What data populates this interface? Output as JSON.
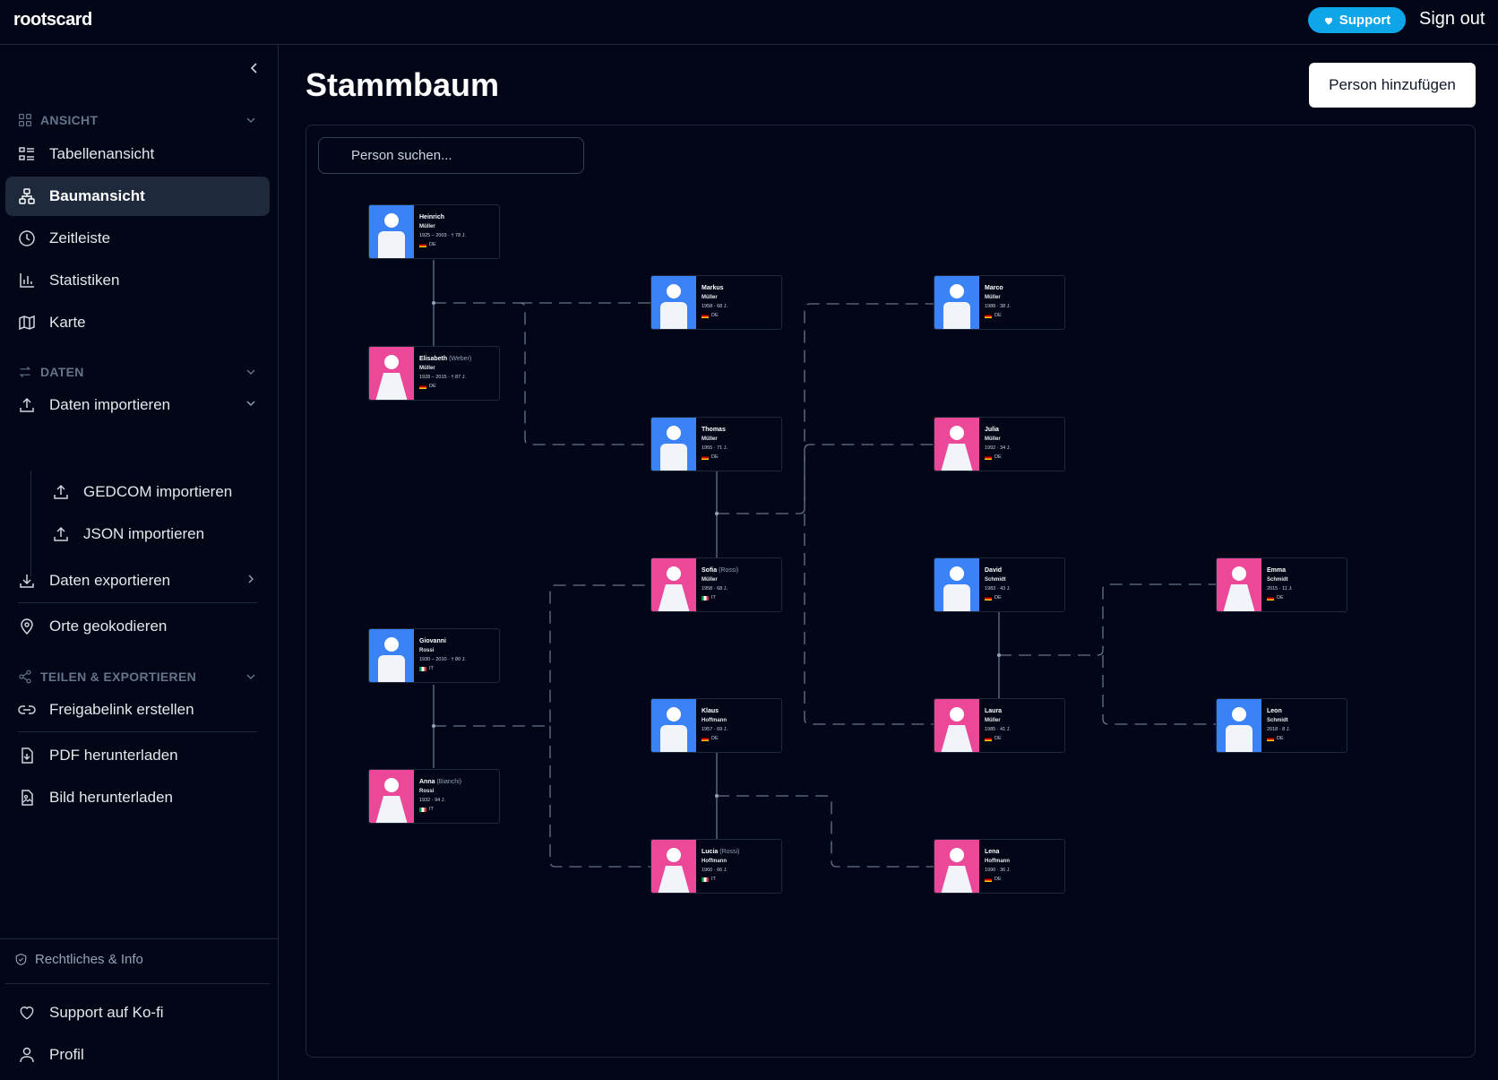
{
  "app": {
    "logo": "rootscard",
    "support_label": "Support",
    "signout_label": "Sign out"
  },
  "sidebar": {
    "sections": [
      {
        "label": "ANSICHT",
        "icon": "grid-icon"
      },
      {
        "label": "DATEN",
        "icon": "arrows-swap-icon"
      },
      {
        "label": "TEILEN & EXPORTIEREN",
        "icon": "share-icon"
      }
    ],
    "items": [
      {
        "label": "Tabellenansicht",
        "icon": "table-list-icon"
      },
      {
        "label": "Baumansicht",
        "icon": "tree-icon",
        "active": true
      },
      {
        "label": "Zeitleiste",
        "icon": "clock-icon"
      },
      {
        "label": "Statistiken",
        "icon": "bar-chart-icon"
      },
      {
        "label": "Karte",
        "icon": "map-icon"
      },
      {
        "label": "Daten importieren",
        "icon": "upload-icon"
      },
      {
        "label": "GEDCOM importieren",
        "icon": "upload-icon"
      },
      {
        "label": "JSON importieren",
        "icon": "upload-icon"
      },
      {
        "label": "Daten exportieren",
        "icon": "download-icon"
      },
      {
        "label": "Orte geokodieren",
        "icon": "map-pin-icon"
      },
      {
        "label": "Freigabelink erstellen",
        "icon": "link-icon"
      },
      {
        "label": "PDF herunterladen",
        "icon": "file-download-icon"
      },
      {
        "label": "Bild herunterladen",
        "icon": "image-file-icon"
      }
    ],
    "legal": "Rechtliches & Info",
    "footer": [
      {
        "label": "Support auf Ko-fi",
        "icon": "heart-icon"
      },
      {
        "label": "Profil",
        "icon": "user-icon"
      }
    ]
  },
  "main": {
    "title": "Stammbaum",
    "add_person_label": "Person hinzufügen",
    "search_placeholder": "Person suchen..."
  },
  "people": [
    {
      "first": "Heinrich",
      "birth": "",
      "last": "Müller",
      "years": "1925 – 2003 · † 78 J.",
      "country": "DE",
      "sex": "m"
    },
    {
      "first": "Elisabeth",
      "birth": "(Weber)",
      "last": "Müller",
      "years": "1928 – 2015 · † 87 J.",
      "country": "DE",
      "sex": "f"
    },
    {
      "first": "Markus",
      "birth": "",
      "last": "Müller",
      "years": "1958 · 68 J.",
      "country": "DE",
      "sex": "m"
    },
    {
      "first": "Thomas",
      "birth": "",
      "last": "Müller",
      "years": "1955 · 71 J.",
      "country": "DE",
      "sex": "m"
    },
    {
      "first": "Marco",
      "birth": "",
      "last": "Müller",
      "years": "1988 · 38 J.",
      "country": "DE",
      "sex": "m"
    },
    {
      "first": "Julia",
      "birth": "",
      "last": "Müller",
      "years": "1992 · 34 J.",
      "country": "DE",
      "sex": "f"
    },
    {
      "first": "Sofia",
      "birth": "(Rossi)",
      "last": "Müller",
      "years": "1958 · 68 J.",
      "country": "IT",
      "sex": "f"
    },
    {
      "first": "David",
      "birth": "",
      "last": "Schmidt",
      "years": "1983 · 43 J.",
      "country": "DE",
      "sex": "m"
    },
    {
      "first": "Emma",
      "birth": "",
      "last": "Schmidt",
      "years": "2015 · 11 J.",
      "country": "DE",
      "sex": "f"
    },
    {
      "first": "Giovanni",
      "birth": "",
      "last": "Rossi",
      "years": "1930 – 2010 · † 80 J.",
      "country": "IT",
      "sex": "m"
    },
    {
      "first": "Klaus",
      "birth": "",
      "last": "Hoffmann",
      "years": "1957 · 69 J.",
      "country": "DE",
      "sex": "m"
    },
    {
      "first": "Laura",
      "birth": "",
      "last": "Müller",
      "years": "1985 · 41 J.",
      "country": "DE",
      "sex": "f"
    },
    {
      "first": "Leon",
      "birth": "",
      "last": "Schmidt",
      "years": "2018 · 8 J.",
      "country": "DE",
      "sex": "m"
    },
    {
      "first": "Anna",
      "birth": "(Bianchi)",
      "last": "Rossi",
      "years": "1932 · 94 J.",
      "country": "IT",
      "sex": "f"
    },
    {
      "first": "Lucia",
      "birth": "(Rossi)",
      "last": "Hoffmann",
      "years": "1960 · 66 J.",
      "country": "IT",
      "sex": "f"
    },
    {
      "first": "Lena",
      "birth": "",
      "last": "Hoffmann",
      "years": "1990 · 36 J.",
      "country": "DE",
      "sex": "f"
    }
  ],
  "colors": {
    "male": "#3b82f6",
    "female": "#ec4899",
    "accent": "#0ea5e9",
    "background": "#020617"
  }
}
